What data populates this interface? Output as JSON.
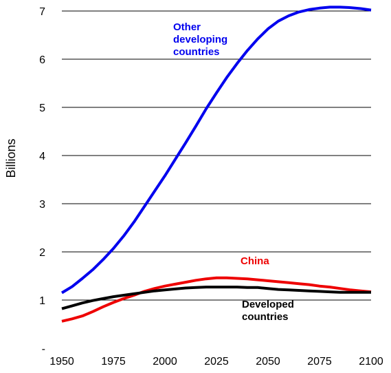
{
  "chart_data": {
    "type": "line",
    "title": "",
    "xlabel": "",
    "ylabel": "Billions",
    "xlim": [
      1950,
      2100
    ],
    "ylim": [
      0,
      7
    ],
    "grid": "horizontal",
    "x_ticks": [
      "1950",
      "1975",
      "2000",
      "2025",
      "2050",
      "2075",
      "2100"
    ],
    "y_ticks": [
      "-",
      "1",
      "2",
      "3",
      "4",
      "5",
      "6",
      "7"
    ],
    "series": [
      {
        "name_lines": [
          "Other",
          "developing",
          "countries"
        ],
        "color": "#0000ee",
        "x": [
          1950,
          1955,
          1960,
          1965,
          1970,
          1975,
          1980,
          1985,
          1990,
          1995,
          2000,
          2005,
          2010,
          2015,
          2020,
          2025,
          2030,
          2035,
          2040,
          2045,
          2050,
          2055,
          2060,
          2065,
          2070,
          2075,
          2080,
          2085,
          2090,
          2095,
          2100
        ],
        "values": [
          1.15,
          1.28,
          1.45,
          1.63,
          1.84,
          2.07,
          2.33,
          2.62,
          2.94,
          3.26,
          3.58,
          3.92,
          4.26,
          4.61,
          4.97,
          5.3,
          5.62,
          5.91,
          6.18,
          6.42,
          6.63,
          6.79,
          6.9,
          6.98,
          7.03,
          7.06,
          7.08,
          7.08,
          7.07,
          7.05,
          7.02
        ]
      },
      {
        "name_lines": [
          "China"
        ],
        "color": "#ee0000",
        "x": [
          1950,
          1955,
          1960,
          1965,
          1970,
          1975,
          1980,
          1985,
          1990,
          1995,
          2000,
          2005,
          2010,
          2015,
          2020,
          2025,
          2030,
          2035,
          2040,
          2045,
          2050,
          2055,
          2060,
          2065,
          2070,
          2075,
          2080,
          2085,
          2090,
          2095,
          2100
        ],
        "values": [
          0.56,
          0.61,
          0.67,
          0.76,
          0.86,
          0.95,
          1.03,
          1.1,
          1.18,
          1.24,
          1.29,
          1.33,
          1.37,
          1.41,
          1.44,
          1.46,
          1.46,
          1.45,
          1.44,
          1.42,
          1.4,
          1.38,
          1.36,
          1.34,
          1.32,
          1.29,
          1.27,
          1.24,
          1.21,
          1.19,
          1.17
        ]
      },
      {
        "name_lines": [
          "Developed",
          "countries"
        ],
        "color": "#000000",
        "x": [
          1950,
          1955,
          1960,
          1965,
          1970,
          1975,
          1980,
          1985,
          1990,
          1995,
          2000,
          2005,
          2010,
          2015,
          2020,
          2025,
          2030,
          2035,
          2040,
          2045,
          2050,
          2055,
          2060,
          2065,
          2070,
          2075,
          2080,
          2085,
          2090,
          2095,
          2100
        ],
        "values": [
          0.82,
          0.88,
          0.94,
          0.99,
          1.03,
          1.07,
          1.1,
          1.13,
          1.16,
          1.19,
          1.21,
          1.23,
          1.25,
          1.26,
          1.27,
          1.27,
          1.27,
          1.27,
          1.26,
          1.26,
          1.24,
          1.22,
          1.21,
          1.2,
          1.19,
          1.18,
          1.17,
          1.16,
          1.16,
          1.16,
          1.16
        ]
      }
    ]
  }
}
